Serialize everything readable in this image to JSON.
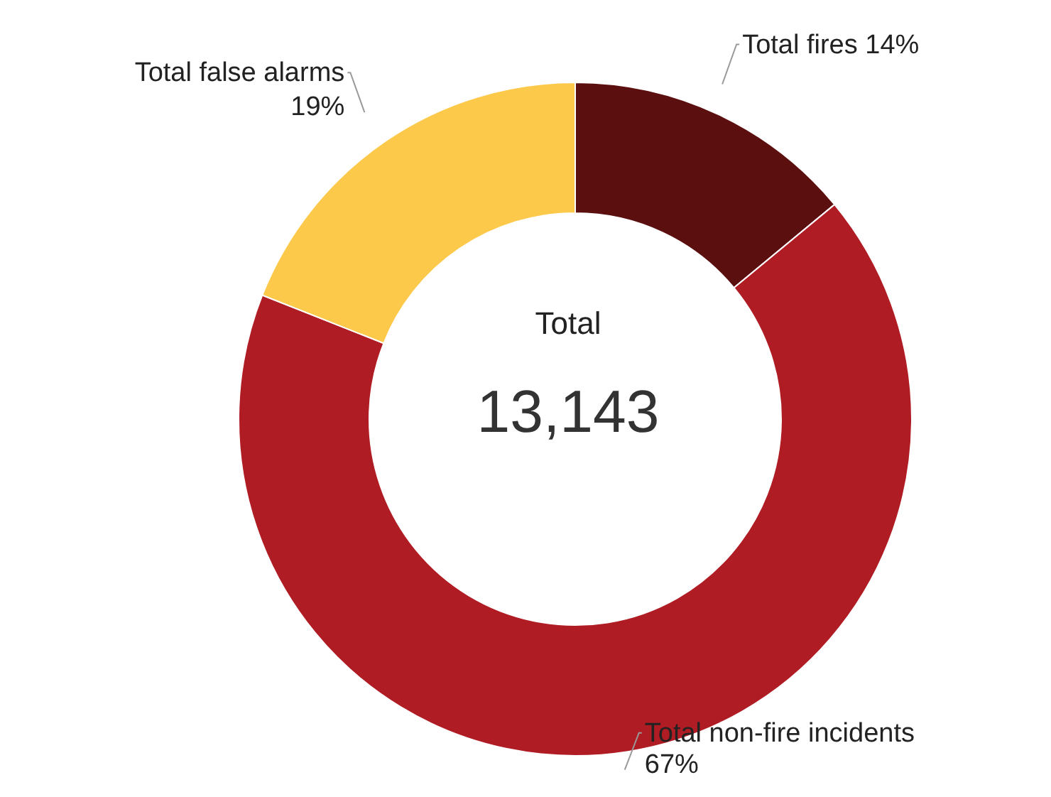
{
  "chart_data": {
    "type": "donut",
    "categories": [
      "Total fires",
      "Total non-fire incidents",
      "Total false alarms"
    ],
    "values": [
      14,
      67,
      19
    ],
    "value_labels": [
      "14%",
      "67%",
      "19%"
    ],
    "colors": [
      "#5c0f0f",
      "#b01c23",
      "#fcc94a"
    ],
    "annotations": [
      "Total",
      "13,143"
    ]
  }
}
